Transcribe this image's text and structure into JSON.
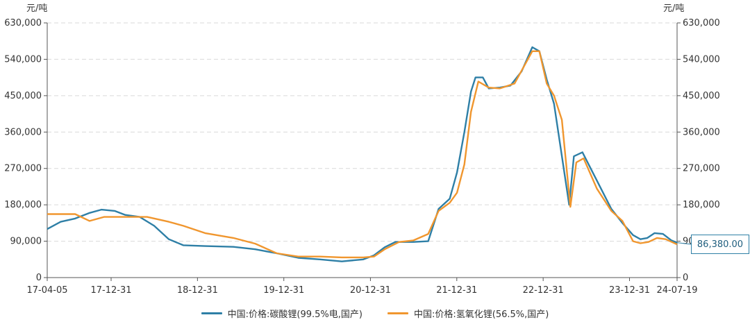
{
  "chart_data": {
    "type": "line",
    "title": "",
    "y_unit_left": "元/吨",
    "y_unit_right": "元/吨",
    "ylim": [
      0,
      630000
    ],
    "y_ticks": [
      "0",
      "90,000",
      "180,000",
      "270,000",
      "360,000",
      "450,000",
      "540,000",
      "630,000"
    ],
    "y_tick_values": [
      0,
      90000,
      180000,
      270000,
      360000,
      450000,
      540000,
      630000
    ],
    "xlim": [
      "2017-04-05",
      "2024-07-19"
    ],
    "x_ticks": [
      {
        "label": "17-04-05",
        "date": "2017-04-05"
      },
      {
        "label": "17-12-31",
        "date": "2017-12-31"
      },
      {
        "label": "18-12-31",
        "date": "2018-12-31"
      },
      {
        "label": "19-12-31",
        "date": "2019-12-31"
      },
      {
        "label": "20-12-31",
        "date": "2020-12-31"
      },
      {
        "label": "21-12-31",
        "date": "2021-12-31"
      },
      {
        "label": "22-12-31",
        "date": "2022-12-31"
      },
      {
        "label": "23-12-31",
        "date": "2023-12-31"
      },
      {
        "label": "24-07-19",
        "date": "2024-07-19"
      }
    ],
    "grid": true,
    "legend_position": "bottom",
    "series": [
      {
        "name": "中国:价格:碳酸锂(99.5%电,国产)",
        "color": "#2e7fa6",
        "points": [
          [
            "2017-04-05",
            120000
          ],
          [
            "2017-06-01",
            138000
          ],
          [
            "2017-08-01",
            146000
          ],
          [
            "2017-10-01",
            160000
          ],
          [
            "2017-11-20",
            168000
          ],
          [
            "2018-01-15",
            165000
          ],
          [
            "2018-03-01",
            155000
          ],
          [
            "2018-05-01",
            150000
          ],
          [
            "2018-07-01",
            128000
          ],
          [
            "2018-09-01",
            95000
          ],
          [
            "2018-11-01",
            80000
          ],
          [
            "2019-02-01",
            78000
          ],
          [
            "2019-06-01",
            76000
          ],
          [
            "2019-09-01",
            70000
          ],
          [
            "2019-12-01",
            60000
          ],
          [
            "2020-03-01",
            49000
          ],
          [
            "2020-06-01",
            45000
          ],
          [
            "2020-09-01",
            40000
          ],
          [
            "2020-12-01",
            45000
          ],
          [
            "2021-01-15",
            55000
          ],
          [
            "2021-03-01",
            75000
          ],
          [
            "2021-04-15",
            88000
          ],
          [
            "2021-07-01",
            88000
          ],
          [
            "2021-09-01",
            90000
          ],
          [
            "2021-10-15",
            170000
          ],
          [
            "2021-12-01",
            195000
          ],
          [
            "2022-01-01",
            260000
          ],
          [
            "2022-02-01",
            360000
          ],
          [
            "2022-03-01",
            460000
          ],
          [
            "2022-03-20",
            495000
          ],
          [
            "2022-04-20",
            495000
          ],
          [
            "2022-05-15",
            468000
          ],
          [
            "2022-07-01",
            470000
          ],
          [
            "2022-08-15",
            475000
          ],
          [
            "2022-10-01",
            510000
          ],
          [
            "2022-11-15",
            570000
          ],
          [
            "2022-12-15",
            560000
          ],
          [
            "2023-01-15",
            490000
          ],
          [
            "2023-02-15",
            430000
          ],
          [
            "2023-03-15",
            320000
          ],
          [
            "2023-04-20",
            180000
          ],
          [
            "2023-05-10",
            300000
          ],
          [
            "2023-06-15",
            310000
          ],
          [
            "2023-08-15",
            240000
          ],
          [
            "2023-10-15",
            170000
          ],
          [
            "2023-12-01",
            135000
          ],
          [
            "2024-01-15",
            105000
          ],
          [
            "2024-02-15",
            95000
          ],
          [
            "2024-03-15",
            98000
          ],
          [
            "2024-04-15",
            110000
          ],
          [
            "2024-05-20",
            108000
          ],
          [
            "2024-06-25",
            92000
          ],
          [
            "2024-07-19",
            86380
          ]
        ]
      },
      {
        "name": "中国:价格:氢氧化锂(56.5%,国产)",
        "color": "#f0962e",
        "points": [
          [
            "2017-04-05",
            157000
          ],
          [
            "2017-08-01",
            157000
          ],
          [
            "2017-10-01",
            140000
          ],
          [
            "2017-12-01",
            150000
          ],
          [
            "2018-06-01",
            150000
          ],
          [
            "2018-09-01",
            138000
          ],
          [
            "2018-11-01",
            128000
          ],
          [
            "2019-02-01",
            110000
          ],
          [
            "2019-06-01",
            98000
          ],
          [
            "2019-09-01",
            84000
          ],
          [
            "2019-12-01",
            60000
          ],
          [
            "2020-03-01",
            52000
          ],
          [
            "2020-06-01",
            52000
          ],
          [
            "2020-09-01",
            50000
          ],
          [
            "2020-12-01",
            50000
          ],
          [
            "2021-01-15",
            52000
          ],
          [
            "2021-03-01",
            70000
          ],
          [
            "2021-05-01",
            88000
          ],
          [
            "2021-07-01",
            92000
          ],
          [
            "2021-09-01",
            108000
          ],
          [
            "2021-10-15",
            165000
          ],
          [
            "2021-12-01",
            185000
          ],
          [
            "2022-01-01",
            210000
          ],
          [
            "2022-02-01",
            280000
          ],
          [
            "2022-03-01",
            410000
          ],
          [
            "2022-04-01",
            485000
          ],
          [
            "2022-05-15",
            470000
          ],
          [
            "2022-07-01",
            468000
          ],
          [
            "2022-09-01",
            480000
          ],
          [
            "2022-11-15",
            560000
          ],
          [
            "2022-12-15",
            560000
          ],
          [
            "2023-01-15",
            480000
          ],
          [
            "2023-02-15",
            450000
          ],
          [
            "2023-03-20",
            390000
          ],
          [
            "2023-04-25",
            175000
          ],
          [
            "2023-05-20",
            285000
          ],
          [
            "2023-06-20",
            295000
          ],
          [
            "2023-08-15",
            220000
          ],
          [
            "2023-10-15",
            165000
          ],
          [
            "2023-12-01",
            140000
          ],
          [
            "2024-01-15",
            90000
          ],
          [
            "2024-02-15",
            85000
          ],
          [
            "2024-03-20",
            88000
          ],
          [
            "2024-04-25",
            98000
          ],
          [
            "2024-06-01",
            95000
          ],
          [
            "2024-07-19",
            82000
          ]
        ]
      }
    ],
    "annotations": [
      {
        "text": "86,380.00",
        "series": "中国:价格:碳酸锂(99.5%电,国产)",
        "date": "2024-07-19",
        "value": 86380
      }
    ]
  },
  "legend": {
    "item1_label": "中国:价格:碳酸锂(99.5%电,国产)",
    "item2_label": "中国:价格:氢氧化锂(56.5%,国产)"
  },
  "callout": {
    "text": "86,380.00"
  }
}
